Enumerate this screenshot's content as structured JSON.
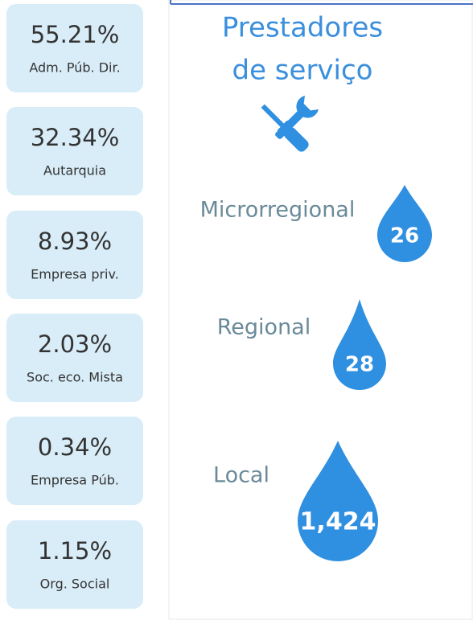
{
  "cards": [
    {
      "value": "55.21%",
      "label": "Adm. Púb. Dir."
    },
    {
      "value": "32.34%",
      "label": "Autarquia"
    },
    {
      "value": "8.93%",
      "label": "Empresa priv."
    },
    {
      "value": "2.03%",
      "label": "Soc. eco. Mista"
    },
    {
      "value": "0.34%",
      "label": "Empresa Púb."
    },
    {
      "value": "1.15%",
      "label": "Org. Social"
    }
  ],
  "panel": {
    "title": [
      "Prestadores",
      "de serviço"
    ],
    "drops": [
      {
        "label": "Microrregional",
        "value": "26"
      },
      {
        "label": "Regional",
        "value": "28"
      },
      {
        "label": "Local",
        "value": "1,424"
      }
    ]
  }
}
